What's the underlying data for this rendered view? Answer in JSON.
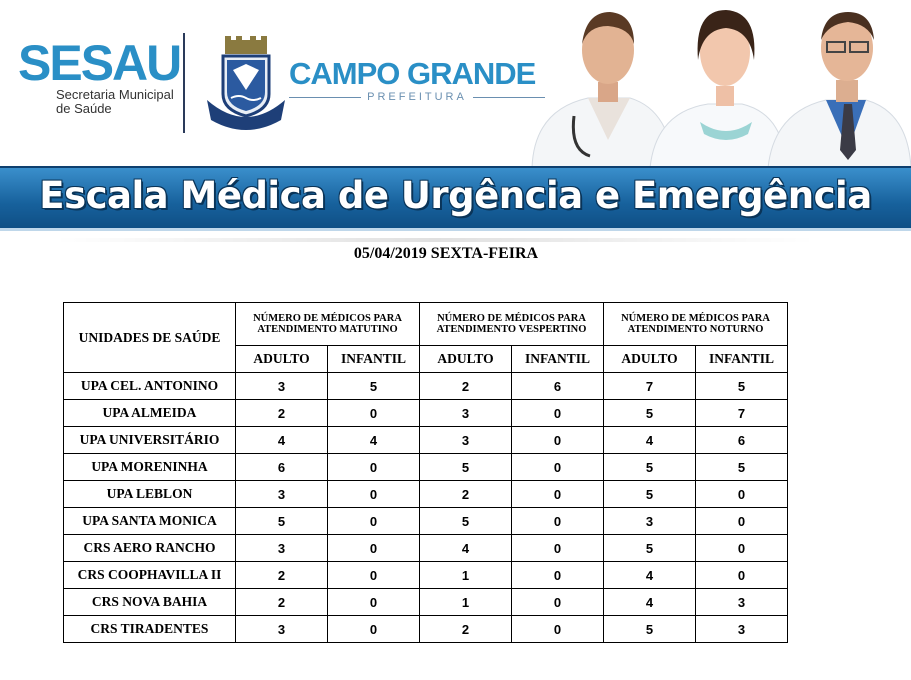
{
  "header": {
    "sesau_logo": "SESAU",
    "sesau_subtitle_line1": "Secretaria Municipal",
    "sesau_subtitle_line2": "de Saúde",
    "city_logo": "CAMPO GRANDE",
    "city_subtitle": "PREFEITURA",
    "banner_title": "Escala Médica de Urgência e Emergência",
    "brand_color": "#2a8fc6",
    "banner_color": "#17619c"
  },
  "date_line": "05/04/2019 SEXTA-FEIRA",
  "table": {
    "units_header": "UNIDADES DE SAÚDE",
    "shift_headers": [
      "NÚMERO DE MÉDICOS PARA ATENDIMENTO MATUTINO",
      "NÚMERO DE MÉDICOS PARA ATENDIMENTO VESPERTINO",
      "NÚMERO DE MÉDICOS PARA ATENDIMENTO NOTURNO"
    ],
    "sub_headers": [
      "ADULTO",
      "INFANTIL",
      "ADULTO",
      "INFANTIL",
      "ADULTO",
      "INFANTIL"
    ],
    "rows": [
      {
        "unit": "UPA CEL. ANTONINO",
        "values": [
          "3",
          "5",
          "2",
          "6",
          "7",
          "5"
        ]
      },
      {
        "unit": "UPA ALMEIDA",
        "values": [
          "2",
          "0",
          "3",
          "0",
          "5",
          "7"
        ]
      },
      {
        "unit": "UPA UNIVERSITÁRIO",
        "values": [
          "4",
          "4",
          "3",
          "0",
          "4",
          "6"
        ]
      },
      {
        "unit": "UPA MORENINHA",
        "values": [
          "6",
          "0",
          "5",
          "0",
          "5",
          "5"
        ]
      },
      {
        "unit": "UPA LEBLON",
        "values": [
          "3",
          "0",
          "2",
          "0",
          "5",
          "0"
        ]
      },
      {
        "unit": "UPA SANTA MONICA",
        "values": [
          "5",
          "0",
          "5",
          "0",
          "3",
          "0"
        ]
      },
      {
        "unit": "CRS AERO RANCHO",
        "values": [
          "3",
          "0",
          "4",
          "0",
          "5",
          "0"
        ]
      },
      {
        "unit": "CRS COOPHAVILLA II",
        "values": [
          "2",
          "0",
          "1",
          "0",
          "4",
          "0"
        ]
      },
      {
        "unit": "CRS NOVA BAHIA",
        "values": [
          "2",
          "0",
          "1",
          "0",
          "4",
          "3"
        ]
      },
      {
        "unit": "CRS TIRADENTES",
        "values": [
          "3",
          "0",
          "2",
          "0",
          "5",
          "3"
        ]
      }
    ]
  }
}
